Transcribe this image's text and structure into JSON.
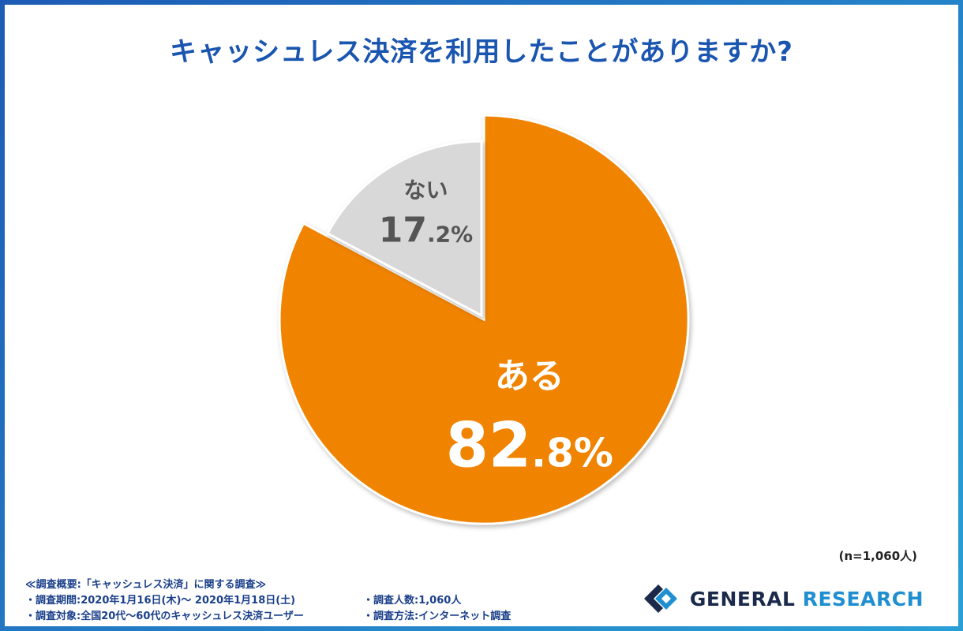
{
  "title": "キャッシュレス決済を利用したことがありますか?",
  "chart_data": {
    "type": "pie",
    "title": "キャッシュレス決済を利用したことがありますか?",
    "slices": [
      {
        "name": "ある",
        "value": 82.8,
        "int_part": "82",
        "dec_part": ".8%",
        "color": "#f08300"
      },
      {
        "name": "ない",
        "value": 17.2,
        "int_part": "17",
        "dec_part": ".2%",
        "color": "#d8d8d8"
      }
    ],
    "start": "12 o'clock, clockwise"
  },
  "sample_size": "(n=1,060人)",
  "survey": {
    "heading": "≪調査概要:「キャッシュレス決済」に関する調査≫",
    "period": "・調査期間:2020年1月16日(木)〜 2020年1月18日(土)",
    "count": "・調査人数:1,060人",
    "target": "・調査対象:全国20代〜60代のキャッシュレス決済ユーザー",
    "method": "・調査方法:インターネット調査"
  },
  "brand": {
    "word1": "GENERAL",
    "word2": "RESEARCH"
  }
}
